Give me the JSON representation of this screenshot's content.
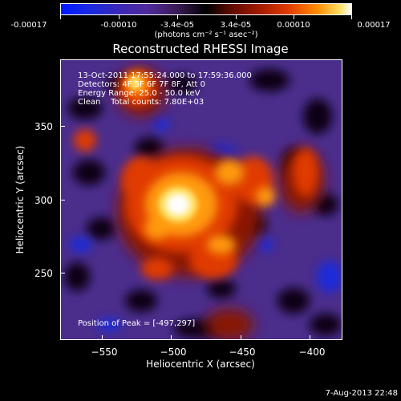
{
  "colorbar": {
    "ticks": [
      "-0.00017",
      "-0.00010",
      "-3.4e-05",
      "3.4e-05",
      "0.00010",
      "0.00017"
    ],
    "unit": "(photons cm⁻² s⁻¹ asec⁻²)"
  },
  "plot": {
    "title": "Reconstructed RHESSI Image",
    "info_lines": [
      "13-Oct-2011 17:55:24.000 to 17:59:36.000",
      "Detectors: 4F 5F 6F 7F 8F, Att 0",
      "Energy Range: 25.0 - 50.0 keV",
      "Clean    Total counts: 7.80E+03"
    ],
    "peak_text": "Position of Peak = [-497,297]",
    "x_axis": {
      "title": "Heliocentric X (arcsec)",
      "ticks": [
        "−550",
        "−500",
        "−450",
        "−400"
      ]
    },
    "y_axis": {
      "title": "Heliocentric Y (arcsec)",
      "ticks": [
        "350",
        "300",
        "250"
      ]
    }
  },
  "footer": {
    "date": "7-Aug-2013 22:48"
  }
}
